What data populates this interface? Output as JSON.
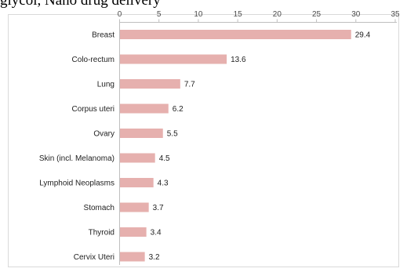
{
  "page": {
    "header_text": "glycol, Nano drug delivery"
  },
  "chart_data": {
    "type": "bar",
    "orientation": "horizontal",
    "categories": [
      "Breast",
      "Colo-rectum",
      "Lung",
      "Corpus uteri",
      "Ovary",
      "Skin (incl. Melanoma)",
      "Lymphoid Neoplasms",
      "Stomach",
      "Thyroid",
      "Cervix Uteri"
    ],
    "values": [
      29.4,
      13.6,
      7.7,
      6.2,
      5.5,
      4.5,
      4.3,
      3.7,
      3.4,
      3.2
    ],
    "data_labels": [
      "29.4",
      "13.6",
      "7.7",
      "6.2",
      "5.5",
      "4.5",
      "4.3",
      "3.7",
      "3.4",
      "3.2"
    ],
    "xlim": [
      0,
      35
    ],
    "xticks": [
      0,
      5,
      10,
      15,
      20,
      25,
      30,
      35
    ],
    "xtick_labels": [
      "0",
      "5",
      "10",
      "15",
      "20",
      "25",
      "30",
      "35"
    ],
    "x_axis_position": "top",
    "title": "",
    "xlabel": "",
    "ylabel": "",
    "grid": false,
    "legend": false,
    "bar_color": "#e6b0ae"
  }
}
